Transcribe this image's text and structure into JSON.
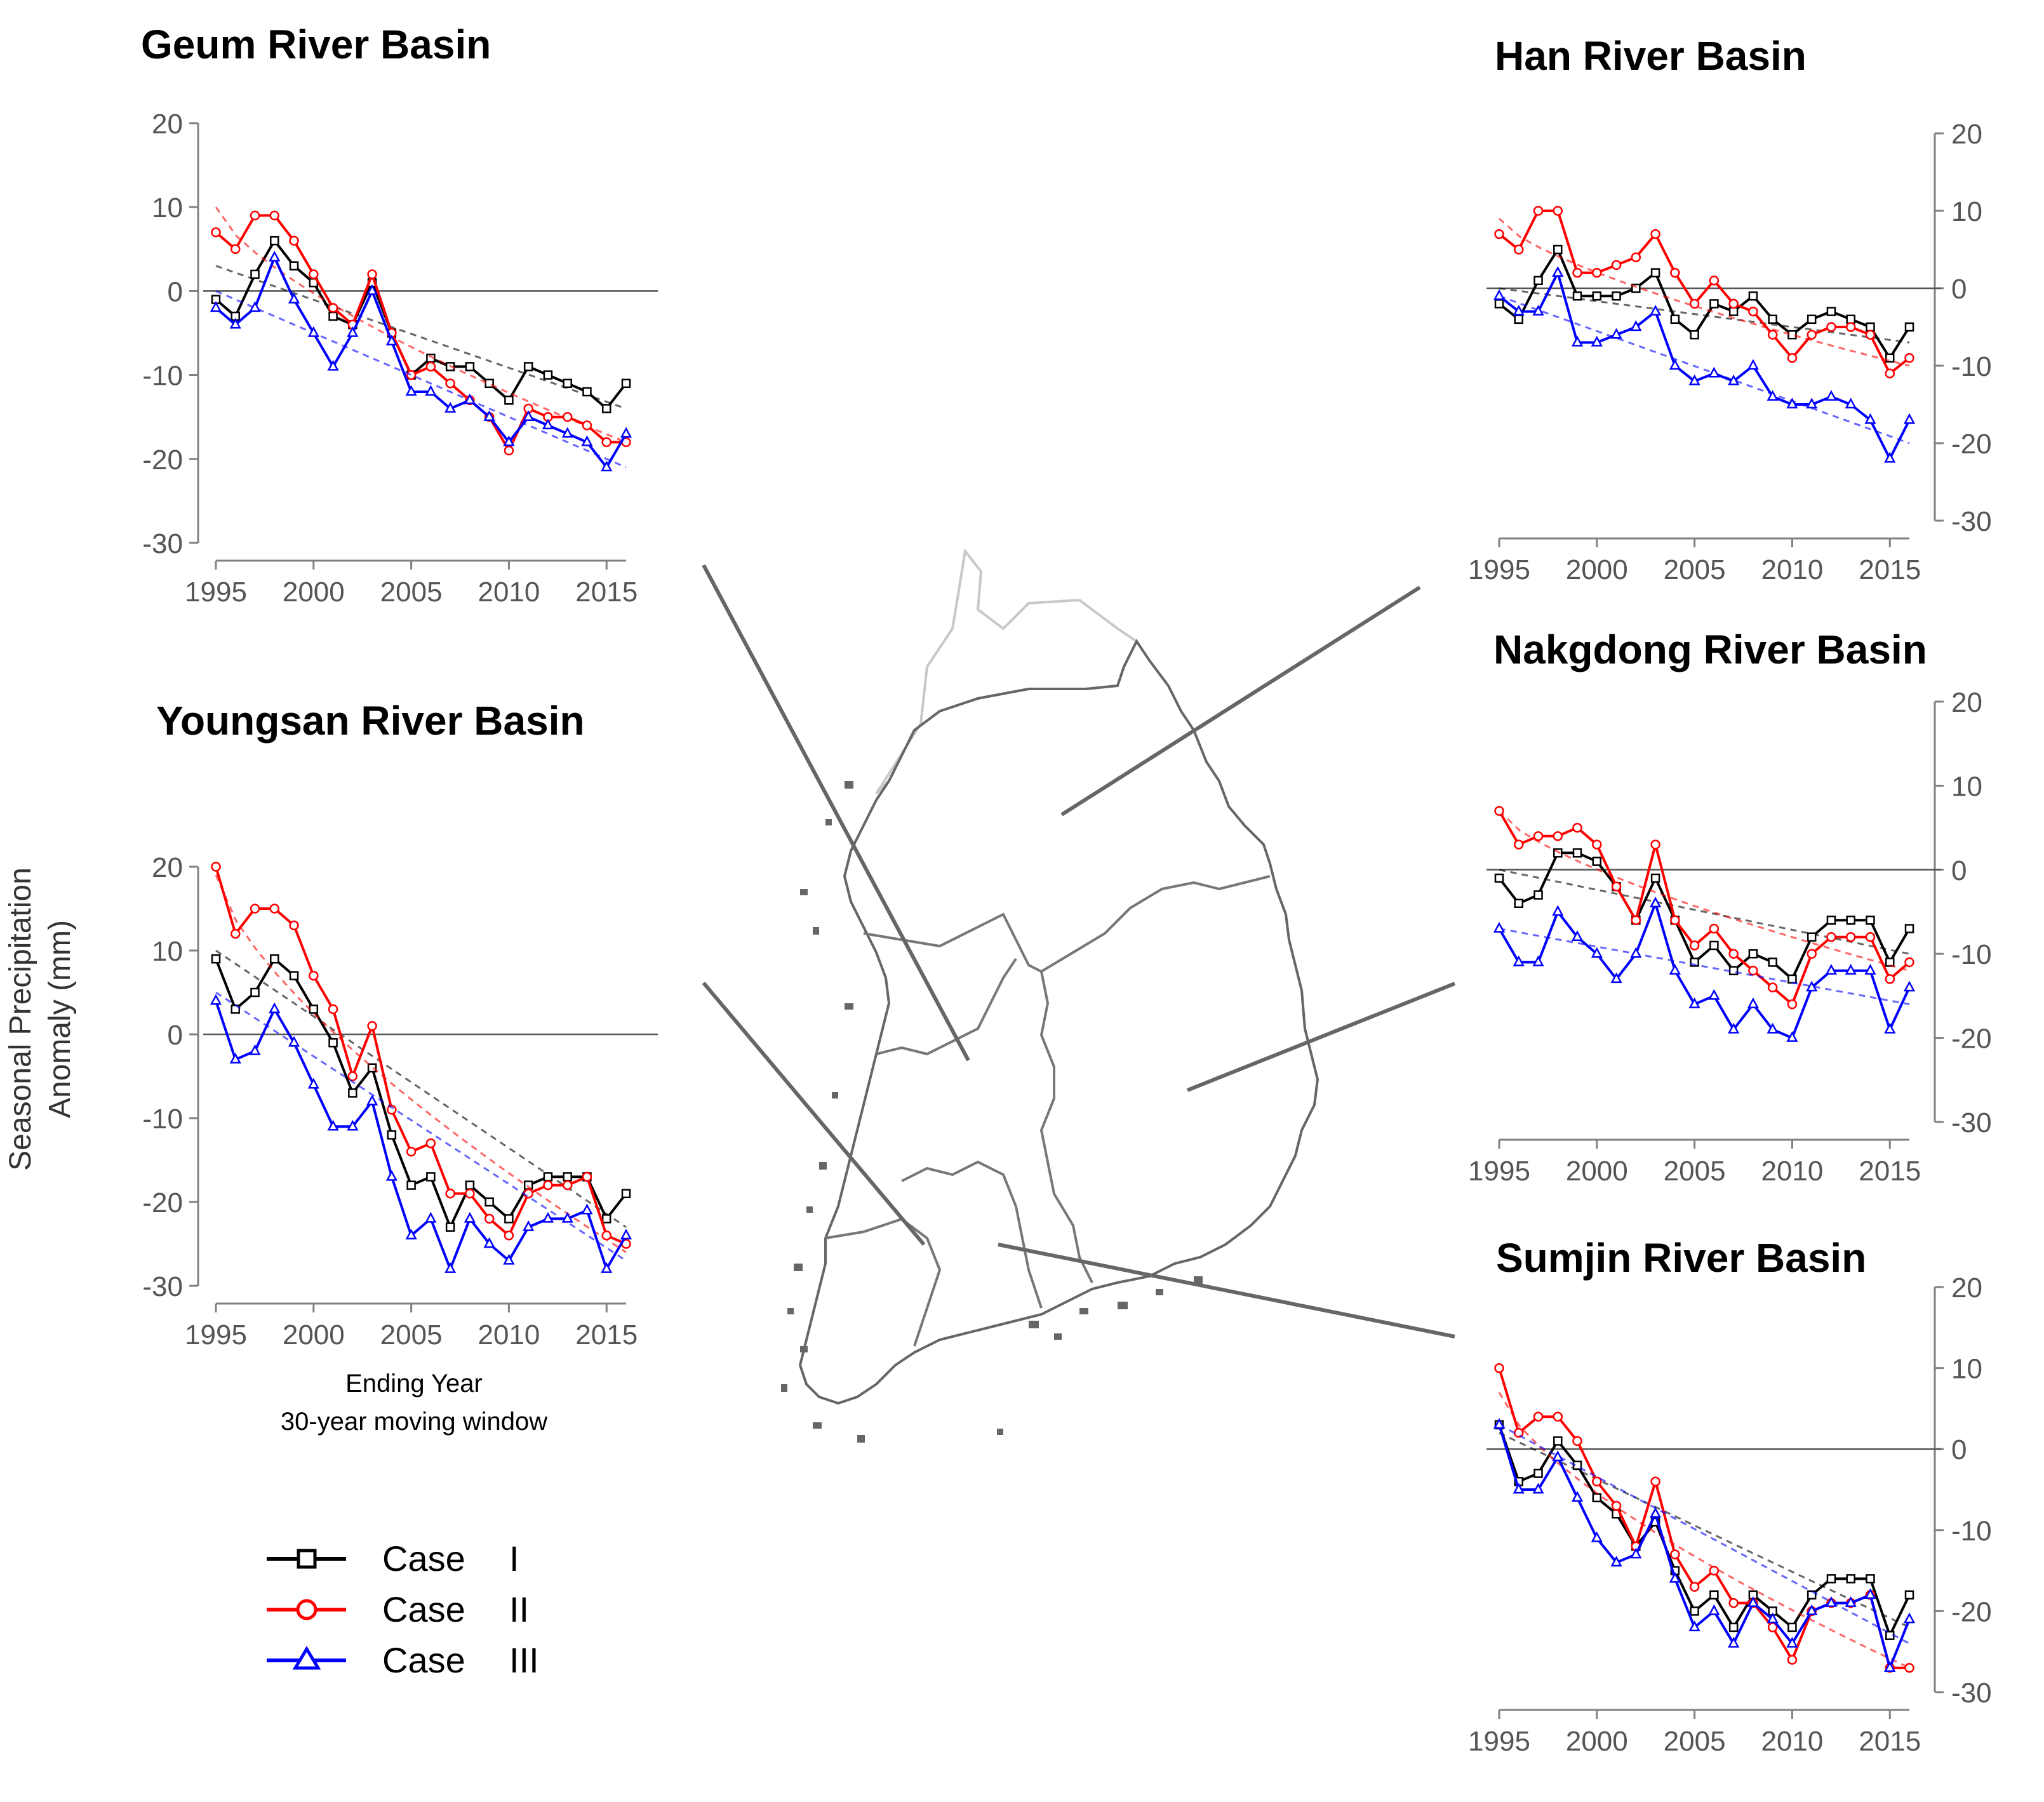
{
  "figure": {
    "ylabel_line1": "Seasonal Precipitation",
    "ylabel_line2": "Anomaly (mm)",
    "xlabel_line1": "Ending Year",
    "xlabel_line2": "30-year moving window"
  },
  "legend": {
    "items": [
      {
        "label": "Case",
        "numeral": "I",
        "color": "#000000",
        "marker": "square"
      },
      {
        "label": "Case",
        "numeral": "II",
        "color": "#ff0000",
        "marker": "circle"
      },
      {
        "label": "Case",
        "numeral": "III",
        "color": "#0000ff",
        "marker": "triangle"
      }
    ]
  },
  "map": {
    "description_icon": "south-korea-river-basin-map-icon"
  },
  "colors": {
    "case1": "#000000",
    "case2": "#ff0000",
    "case3": "#0000ff",
    "axis": "#808080"
  },
  "chart_data": [
    {
      "id": "geum",
      "type": "line",
      "title": "Geum River Basin",
      "xlim": [
        1995,
        2016
      ],
      "ylim": [
        -30,
        20
      ],
      "xticks": [
        1995,
        2000,
        2005,
        2010,
        2015
      ],
      "yticks": [
        20,
        10,
        0,
        -10,
        -20,
        -30
      ],
      "y_axis_side": "left",
      "x": [
        1995,
        1996,
        1997,
        1998,
        1999,
        2000,
        2001,
        2002,
        2003,
        2004,
        2005,
        2006,
        2007,
        2008,
        2009,
        2010,
        2011,
        2012,
        2013,
        2014,
        2015,
        2016
      ],
      "series": [
        {
          "name": "Case I",
          "color": "#000000",
          "marker": "square",
          "values": [
            -1,
            -3,
            2,
            6,
            3,
            1,
            -3,
            -4,
            1,
            -5,
            -10,
            -8,
            -9,
            -9,
            -11,
            -13,
            -9,
            -10,
            -11,
            -12,
            -14,
            -11
          ],
          "trend": [
            3,
            -14
          ]
        },
        {
          "name": "Case II",
          "color": "#ff0000",
          "marker": "circle",
          "values": [
            7,
            5,
            9,
            9,
            6,
            2,
            -2,
            -4,
            2,
            -5,
            -10,
            -9,
            -11,
            -13,
            -15,
            -19,
            -14,
            -15,
            -15,
            -16,
            -18,
            -18
          ],
          "trend": [
            10,
            -18
          ]
        },
        {
          "name": "Case III",
          "color": "#0000ff",
          "marker": "triangle",
          "values": [
            -2,
            -4,
            -2,
            4,
            -1,
            -5,
            -9,
            -5,
            0,
            -6,
            -12,
            -12,
            -14,
            -13,
            -15,
            -18,
            -15,
            -16,
            -17,
            -18,
            -21,
            -17
          ],
          "trend": [
            0,
            -21
          ]
        }
      ]
    },
    {
      "id": "youngsan",
      "type": "line",
      "title": "Youngsan River Basin",
      "xlim": [
        1995,
        2016
      ],
      "ylim": [
        -30,
        20
      ],
      "xticks": [
        1995,
        2000,
        2005,
        2010,
        2015
      ],
      "yticks": [
        20,
        10,
        0,
        -10,
        -20,
        -30
      ],
      "y_axis_side": "left",
      "x": [
        1995,
        1996,
        1997,
        1998,
        1999,
        2000,
        2001,
        2002,
        2003,
        2004,
        2005,
        2006,
        2007,
        2008,
        2009,
        2010,
        2011,
        2012,
        2013,
        2014,
        2015,
        2016
      ],
      "series": [
        {
          "name": "Case I",
          "color": "#000000",
          "marker": "square",
          "values": [
            9,
            3,
            5,
            9,
            7,
            3,
            -1,
            -7,
            -4,
            -12,
            -18,
            -17,
            -23,
            -18,
            -20,
            -22,
            -18,
            -17,
            -17,
            -17,
            -22,
            -19
          ],
          "trend": [
            10,
            -23
          ]
        },
        {
          "name": "Case II",
          "color": "#ff0000",
          "marker": "circle",
          "values": [
            20,
            12,
            15,
            15,
            13,
            7,
            3,
            -5,
            1,
            -9,
            -14,
            -13,
            -19,
            -19,
            -22,
            -24,
            -19,
            -18,
            -18,
            -17,
            -24,
            -25
          ],
          "trend": [
            19,
            -26
          ]
        },
        {
          "name": "Case III",
          "color": "#0000ff",
          "marker": "triangle",
          "values": [
            4,
            -3,
            -2,
            3,
            -1,
            -6,
            -11,
            -11,
            -8,
            -17,
            -24,
            -22,
            -28,
            -22,
            -25,
            -27,
            -23,
            -22,
            -22,
            -21,
            -28,
            -24
          ],
          "trend": [
            5,
            -27
          ]
        }
      ]
    },
    {
      "id": "han",
      "type": "line",
      "title": "Han River Basin",
      "xlim": [
        1995,
        2016
      ],
      "ylim": [
        -30,
        20
      ],
      "xticks": [
        1995,
        2000,
        2005,
        2010,
        2015
      ],
      "yticks": [
        20,
        10,
        0,
        -10,
        -20,
        -30
      ],
      "y_axis_side": "right",
      "x": [
        1995,
        1996,
        1997,
        1998,
        1999,
        2000,
        2001,
        2002,
        2003,
        2004,
        2005,
        2006,
        2007,
        2008,
        2009,
        2010,
        2011,
        2012,
        2013,
        2014,
        2015,
        2016
      ],
      "series": [
        {
          "name": "Case I",
          "color": "#000000",
          "marker": "square",
          "values": [
            -2,
            -4,
            1,
            5,
            -1,
            -1,
            -1,
            0,
            2,
            -4,
            -6,
            -2,
            -3,
            -1,
            -4,
            -6,
            -4,
            -3,
            -4,
            -5,
            -9,
            -5
          ],
          "trend": [
            0,
            -7
          ]
        },
        {
          "name": "Case II",
          "color": "#ff0000",
          "marker": "circle",
          "values": [
            7,
            5,
            10,
            10,
            2,
            2,
            3,
            4,
            7,
            2,
            -2,
            1,
            -2,
            -3,
            -6,
            -9,
            -6,
            -5,
            -5,
            -6,
            -11,
            -9
          ],
          "trend": [
            9,
            -10
          ]
        },
        {
          "name": "Case III",
          "color": "#0000ff",
          "marker": "triangle",
          "values": [
            -1,
            -3,
            -3,
            2,
            -7,
            -7,
            -6,
            -5,
            -3,
            -10,
            -12,
            -11,
            -12,
            -10,
            -14,
            -15,
            -15,
            -14,
            -15,
            -17,
            -22,
            -17
          ],
          "trend": [
            -1,
            -20
          ]
        }
      ]
    },
    {
      "id": "nakgdong",
      "type": "line",
      "title": "Nakgdong River Basin",
      "xlim": [
        1995,
        2016
      ],
      "ylim": [
        -30,
        20
      ],
      "xticks": [
        1995,
        2000,
        2005,
        2010,
        2015
      ],
      "yticks": [
        20,
        10,
        0,
        -10,
        -20,
        -30
      ],
      "y_axis_side": "right",
      "x": [
        1995,
        1996,
        1997,
        1998,
        1999,
        2000,
        2001,
        2002,
        2003,
        2004,
        2005,
        2006,
        2007,
        2008,
        2009,
        2010,
        2011,
        2012,
        2013,
        2014,
        2015,
        2016
      ],
      "series": [
        {
          "name": "Case I",
          "color": "#000000",
          "marker": "square",
          "values": [
            -1,
            -4,
            -3,
            2,
            2,
            1,
            -2,
            -6,
            -1,
            -6,
            -11,
            -9,
            -12,
            -10,
            -11,
            -13,
            -8,
            -6,
            -6,
            -6,
            -11,
            -7
          ],
          "trend": [
            0,
            -10
          ]
        },
        {
          "name": "Case II",
          "color": "#ff0000",
          "marker": "circle",
          "values": [
            7,
            3,
            4,
            4,
            5,
            3,
            -2,
            -6,
            3,
            -6,
            -9,
            -7,
            -10,
            -12,
            -14,
            -16,
            -10,
            -8,
            -8,
            -8,
            -13,
            -11
          ],
          "trend": [
            7,
            -12
          ]
        },
        {
          "name": "Case III",
          "color": "#0000ff",
          "marker": "triangle",
          "values": [
            -7,
            -11,
            -11,
            -5,
            -8,
            -10,
            -13,
            -10,
            -4,
            -12,
            -16,
            -15,
            -19,
            -16,
            -19,
            -20,
            -14,
            -12,
            -12,
            -12,
            -19,
            -14
          ],
          "trend": [
            -7,
            -16
          ]
        }
      ]
    },
    {
      "id": "sumjin",
      "type": "line",
      "title": "Sumjin River Basin",
      "xlim": [
        1995,
        2016
      ],
      "ylim": [
        -30,
        20
      ],
      "xticks": [
        1995,
        2000,
        2005,
        2010,
        2015
      ],
      "yticks": [
        20,
        10,
        0,
        -10,
        -20,
        -30
      ],
      "y_axis_side": "right",
      "x": [
        1995,
        1996,
        1997,
        1998,
        1999,
        2000,
        2001,
        2002,
        2003,
        2004,
        2005,
        2006,
        2007,
        2008,
        2009,
        2010,
        2011,
        2012,
        2013,
        2014,
        2015,
        2016
      ],
      "series": [
        {
          "name": "Case I",
          "color": "#000000",
          "marker": "square",
          "values": [
            3,
            -4,
            -3,
            1,
            -2,
            -6,
            -8,
            -12,
            -9,
            -15,
            -20,
            -18,
            -22,
            -18,
            -20,
            -22,
            -18,
            -16,
            -16,
            -16,
            -23,
            -18
          ],
          "trend": [
            2,
            -22
          ]
        },
        {
          "name": "Case II",
          "color": "#ff0000",
          "marker": "circle",
          "values": [
            10,
            2,
            4,
            4,
            1,
            -4,
            -7,
            -12,
            -4,
            -13,
            -17,
            -15,
            -19,
            -19,
            -22,
            -26,
            -20,
            -19,
            -19,
            -18,
            -27,
            -27
          ],
          "trend": [
            7,
            -27
          ]
        },
        {
          "name": "Case III",
          "color": "#0000ff",
          "marker": "triangle",
          "values": [
            3,
            -5,
            -5,
            -1,
            -6,
            -11,
            -14,
            -13,
            -8,
            -16,
            -22,
            -20,
            -24,
            -19,
            -21,
            -24,
            -20,
            -19,
            -19,
            -18,
            -27,
            -21
          ],
          "trend": [
            3,
            -24
          ]
        }
      ]
    }
  ]
}
